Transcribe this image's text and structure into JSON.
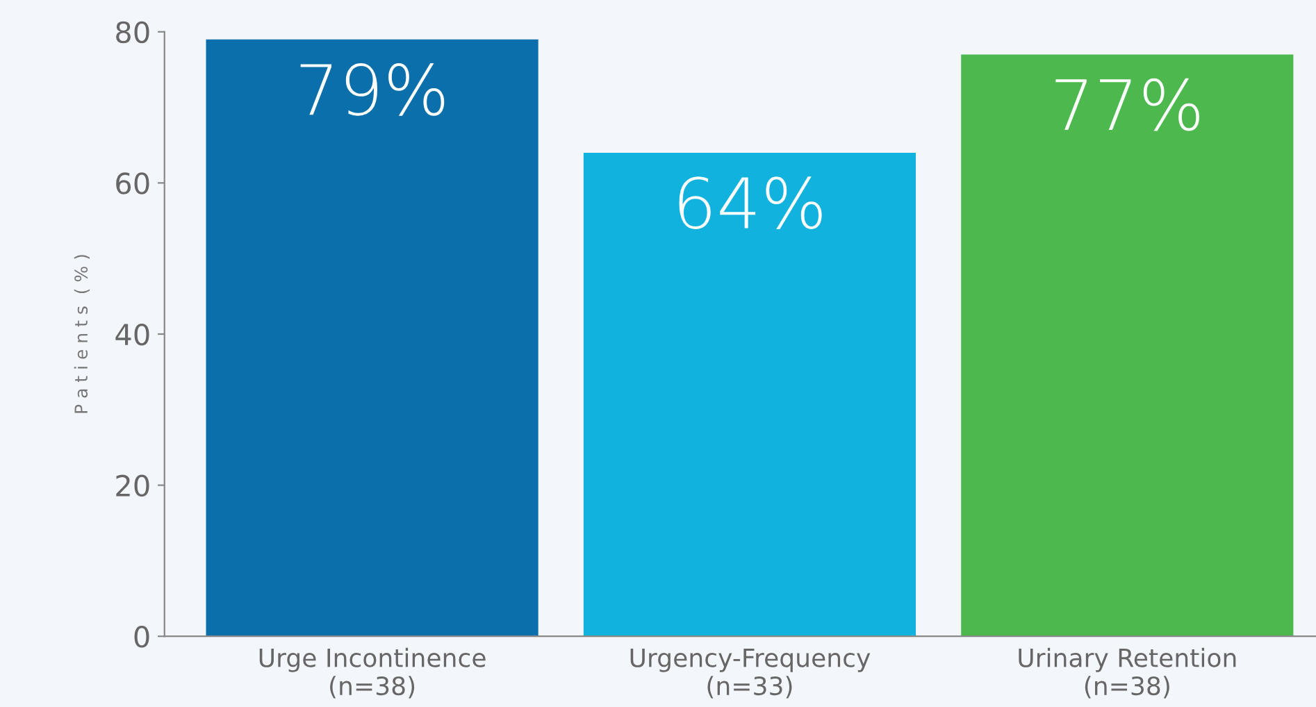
{
  "chart_data": {
    "type": "bar",
    "categories": [
      "Urge Incontinence\n(n=38)",
      "Urgency-Frequency\n(n=33)",
      "Urinary Retention\n(n=38)"
    ],
    "values": [
      79,
      64,
      77
    ],
    "colors": [
      "#0a6fab",
      "#12b2df",
      "#4cb84e"
    ],
    "value_labels": [
      "79%",
      "64%",
      "77%"
    ],
    "ylabel": "P a t i e n t s  ( % )",
    "ylim": [
      0,
      80
    ],
    "yticks": [
      0,
      20,
      40,
      60,
      80
    ],
    "grid": false
  }
}
